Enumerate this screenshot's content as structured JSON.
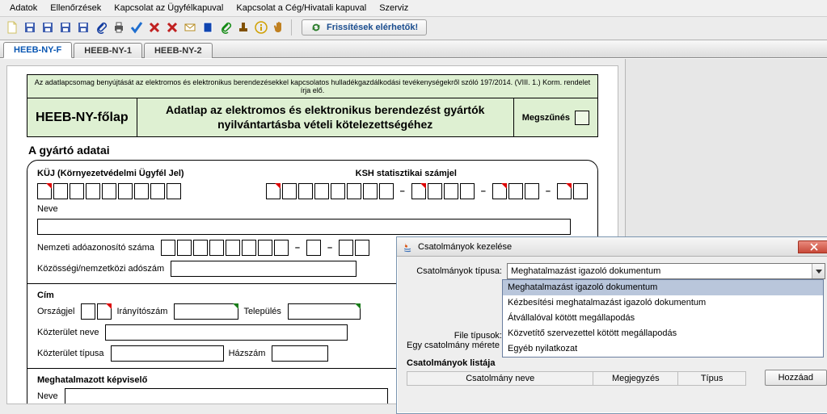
{
  "menubar": [
    "Adatok",
    "Ellenőrzések",
    "Kapcsolat az Ügyfélkapuval",
    "Kapcsolat a Cég/Hivatali kapuval",
    "Szerviz"
  ],
  "updates_label": "Frissítések elérhetők!",
  "toolbar_icons": [
    {
      "name": "new-icon",
      "fg": "#d0c060",
      "shape": "file"
    },
    {
      "name": "save-icon",
      "fg": "#3f5fb0",
      "shape": "floppy"
    },
    {
      "name": "save-as-icon",
      "fg": "#3f5fb0",
      "shape": "floppy"
    },
    {
      "name": "save-all-icon",
      "fg": "#3f5fb0",
      "shape": "floppy"
    },
    {
      "name": "open-icon",
      "fg": "#3f5fb0",
      "shape": "floppy"
    },
    {
      "name": "paste-icon",
      "fg": "#103a9f",
      "shape": "clip"
    },
    {
      "name": "print-icon",
      "fg": "#555",
      "shape": "printer"
    },
    {
      "name": "check-icon",
      "fg": "#1f6ecf",
      "shape": "check"
    },
    {
      "name": "delete-icon",
      "fg": "#c02020",
      "shape": "x"
    },
    {
      "name": "delete2-icon",
      "fg": "#c02020",
      "shape": "x"
    },
    {
      "name": "mail-icon",
      "fg": "#b68b20",
      "shape": "env"
    },
    {
      "name": "book-icon",
      "fg": "#1045b0",
      "shape": "book"
    },
    {
      "name": "attach-icon",
      "fg": "#128a12",
      "shape": "clip"
    },
    {
      "name": "stamp-icon",
      "fg": "#805000",
      "shape": "stamp"
    },
    {
      "name": "info-icon",
      "fg": "#d0a000",
      "shape": "info"
    },
    {
      "name": "hand-icon",
      "fg": "#c08020",
      "shape": "hand"
    }
  ],
  "tabs": [
    {
      "label": "HEEB-NY-F",
      "active": true
    },
    {
      "label": "HEEB-NY-1",
      "active": false
    },
    {
      "label": "HEEB-NY-2",
      "active": false
    }
  ],
  "green": {
    "top": "Az adatlapcsomag benyújtását az elektromos és elektronikus berendezésekkel kapcsolatos hulladékgazdálkodási tevékenységekről szóló 197/2014. (VIII. 1.) Korm. rendelet írja elő.",
    "left": "HEEB-NY-főlap",
    "center": "Adatlap az elektromos és elektronikus berendezést gyártók nyilvántartásba vételi kötelezettségéhez",
    "right": "Megszűnés"
  },
  "section_manufacturer": "A gyártó adatai",
  "form": {
    "kuj_label": "KÜJ (Környezetvédelmi Ügyfél Jel)",
    "ksh_label": "KSH statisztikai számjel",
    "name_label": "Neve",
    "national_tax_label": "Nemzeti adóazonosító száma",
    "intl_tax_label": "Közösségi/nemzetközi adószám",
    "address_title": "Cím",
    "country_label": "Országjel",
    "zip_label": "Irányítószám",
    "city_label": "Település",
    "street_name_label": "Közterület neve",
    "street_type_label": "Közterület típusa",
    "house_label": "Házszám",
    "rep_title": "Meghatalmazott képviselő",
    "rep_name_label": "Neve"
  },
  "dialog": {
    "title": "Csatolmányok kezelése",
    "type_label": "Csatolmányok típusa:",
    "selected": "Meghatalmazást igazoló dokumentum",
    "options": [
      "Meghatalmazást igazoló dokumentum",
      "Kézbesítési meghatalmazást igazoló dokumentum",
      "Átvállalóval kötött megállapodás",
      "Közvetítő szervezettel kötött megállapodás",
      "Egyéb nyilatkozat"
    ],
    "file_types_label": "File típusok:",
    "one_size_label": "Egy csatolmány mérete",
    "list_title": "Csatolmányok listája",
    "col_name": "Csatolmány neve",
    "col_note": "Megjegyzés",
    "col_type": "Típus",
    "add_label": "Hozzáad"
  }
}
